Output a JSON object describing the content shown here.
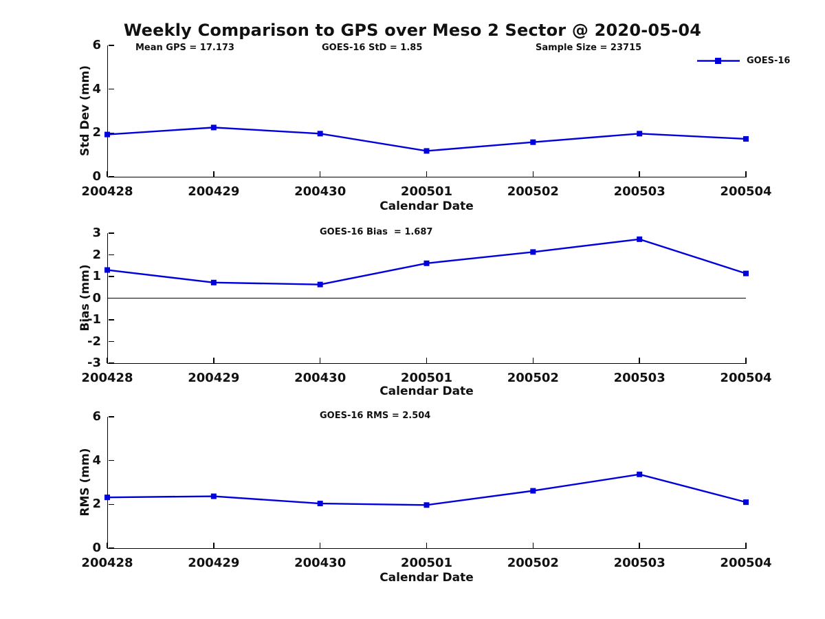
{
  "title": "Weekly Comparison to GPS over Meso 2 Sector @ 2020-05-04",
  "annotations": {
    "mean_gps": "Mean GPS = 17.173",
    "goes_std": "GOES-16 StD = 1.85",
    "sample_size": "Sample Size = 23715",
    "goes_bias": "GOES-16 Bias  = 1.687",
    "goes_rms": "GOES-16 RMS = 2.504"
  },
  "legend": {
    "label": "GOES-16",
    "color": "#0000DD"
  },
  "colors": {
    "series_blue": "#0000DD",
    "axis_black": "#000000",
    "text": "#111111"
  },
  "chart_data": [
    {
      "type": "line",
      "panel": "std_dev",
      "title": "",
      "categories": [
        "200428",
        "200429",
        "200430",
        "200501",
        "200502",
        "200503",
        "200504"
      ],
      "series": [
        {
          "name": "GOES-16",
          "color": "#0000DD",
          "marker": "square",
          "values": [
            1.93,
            2.25,
            1.97,
            1.18,
            1.58,
            1.97,
            1.73
          ]
        }
      ],
      "xlabel": "Calendar Date",
      "ylabel": "Std Dev (mm)",
      "ylim": [
        0,
        6
      ],
      "yticks": [
        0,
        2,
        4,
        6
      ],
      "grid": false,
      "legend_position": "top-right-above-axes",
      "zero_line": false
    },
    {
      "type": "line",
      "panel": "bias",
      "title": "",
      "categories": [
        "200428",
        "200429",
        "200430",
        "200501",
        "200502",
        "200503",
        "200504"
      ],
      "series": [
        {
          "name": "GOES-16",
          "color": "#0000DD",
          "marker": "square",
          "values": [
            1.3,
            0.72,
            0.63,
            1.61,
            2.13,
            2.72,
            1.14
          ]
        }
      ],
      "xlabel": "Calendar Date",
      "ylabel": "Bias (mm)",
      "ylim": [
        -3,
        3
      ],
      "yticks": [
        -3,
        -2,
        -1,
        0,
        1,
        2,
        3
      ],
      "grid": false,
      "zero_line": true
    },
    {
      "type": "line",
      "panel": "rms",
      "title": "",
      "categories": [
        "200428",
        "200429",
        "200430",
        "200501",
        "200502",
        "200503",
        "200504"
      ],
      "series": [
        {
          "name": "GOES-16",
          "color": "#0000DD",
          "marker": "square",
          "values": [
            2.32,
            2.37,
            2.04,
            1.97,
            2.62,
            3.37,
            2.1
          ]
        }
      ],
      "xlabel": "Calendar Date",
      "ylabel": "RMS (mm)",
      "ylim": [
        0,
        6
      ],
      "yticks": [
        0,
        2,
        4,
        6
      ],
      "grid": false,
      "zero_line": false
    }
  ]
}
